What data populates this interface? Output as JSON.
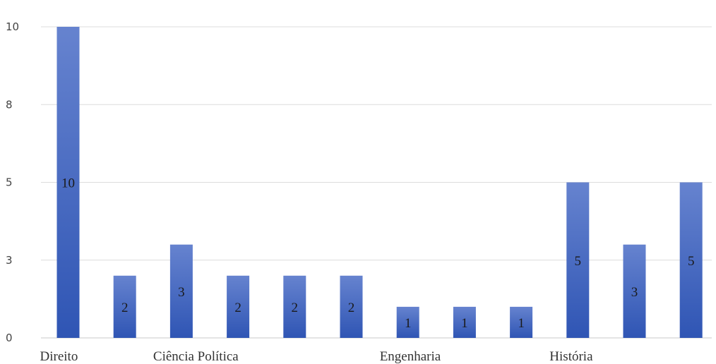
{
  "chart_data": {
    "type": "bar",
    "title": "",
    "xlabel": "",
    "ylabel": "",
    "categories": [
      "Direito",
      "",
      "Ciência Política",
      "",
      "",
      "",
      "Engenharia",
      "",
      "",
      "História",
      "",
      ""
    ],
    "values": [
      10,
      2,
      3,
      2,
      2,
      2,
      1,
      1,
      1,
      5,
      3,
      5
    ],
    "ytick_labels": [
      "0",
      "3",
      "5",
      "8",
      "10"
    ],
    "grid": true,
    "legend": "none",
    "bar_color": "#4a6fc9"
  }
}
